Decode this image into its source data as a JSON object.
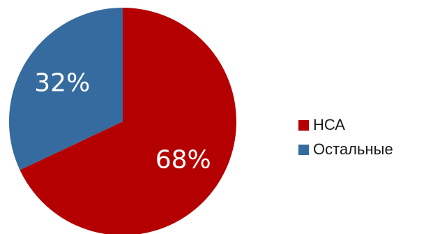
{
  "chart_data": {
    "type": "pie",
    "categories": [
      "НСА",
      "Остальные"
    ],
    "values": [
      68,
      32
    ],
    "value_labels": [
      "68%",
      "32%"
    ],
    "colors": [
      "#B40000",
      "#356B9E"
    ],
    "start_angle": "12 o'clock",
    "direction": "clockwise",
    "legend_position": "right"
  }
}
